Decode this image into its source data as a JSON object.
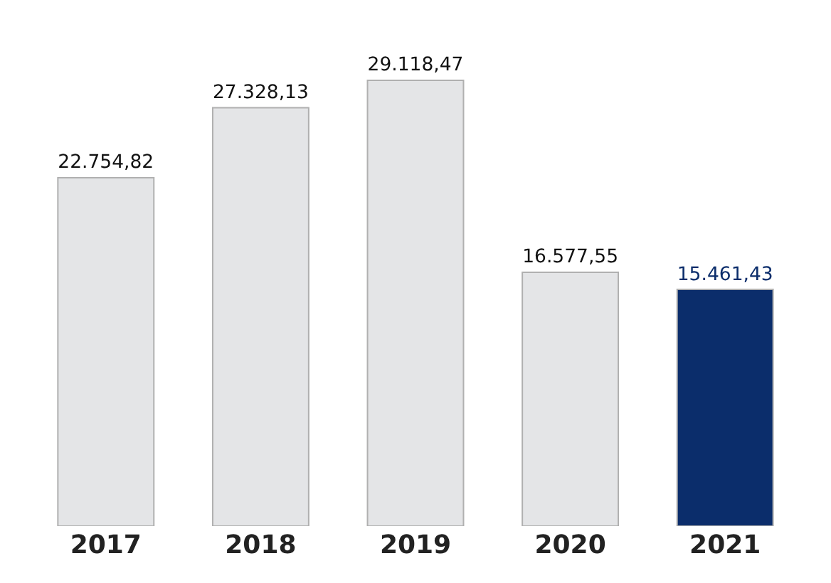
{
  "chart_data": {
    "type": "bar",
    "categories": [
      "2017",
      "2018",
      "2019",
      "2020",
      "2021"
    ],
    "values": [
      22754.82,
      27328.13,
      29118.47,
      16577.55,
      15461.43
    ],
    "value_labels": [
      "22.754,82",
      "27.328,13",
      "29.118,47",
      "16.577,55",
      "15.461,43"
    ],
    "colors": [
      "#e4e5e7",
      "#e4e5e7",
      "#e4e5e7",
      "#e4e5e7",
      "#0b2d6b"
    ],
    "tick_labels": "x",
    "legend": false
  }
}
